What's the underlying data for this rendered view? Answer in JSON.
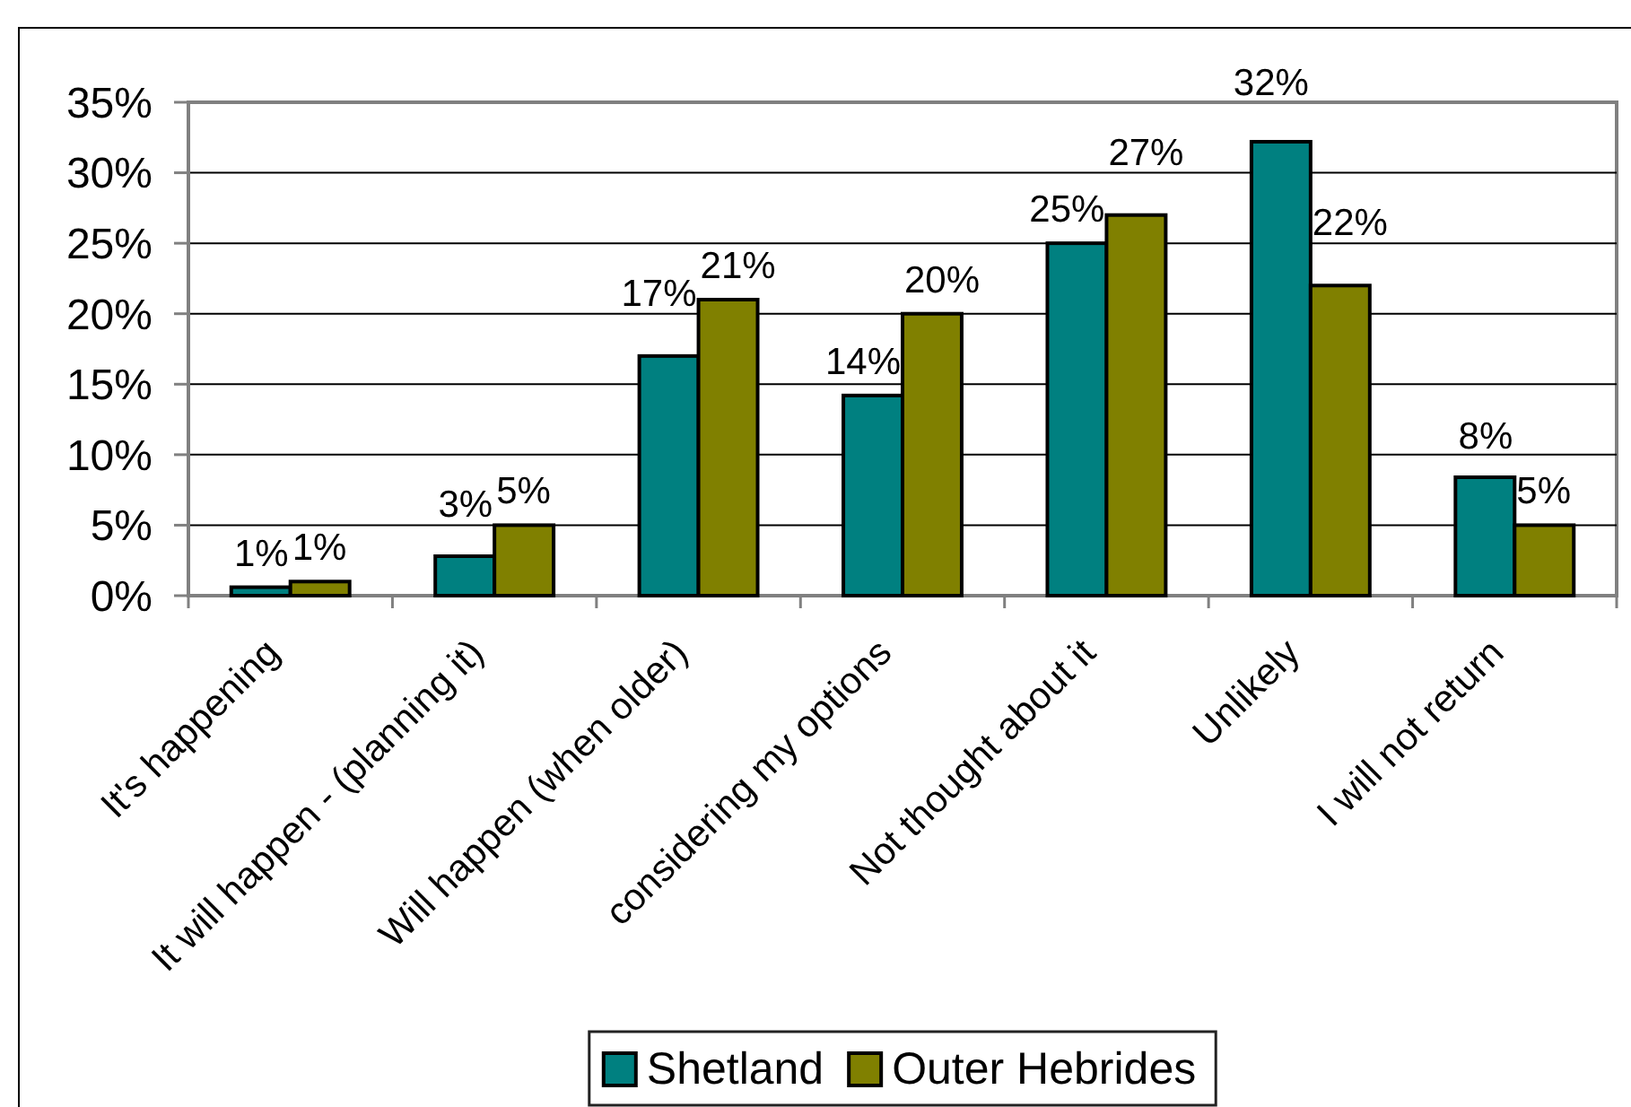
{
  "chart_data": {
    "type": "bar",
    "categories": [
      "It's happening",
      "It will happen - (planning it)",
      "Will happen (when older)",
      "considering my options",
      "Not thought about it",
      "Unlikely",
      "I will not return"
    ],
    "series": [
      {
        "name": "Shetland",
        "color": "#008080",
        "values": [
          0.6,
          2.8,
          17,
          14.2,
          25,
          32.2,
          8.4
        ],
        "value_labels": [
          "1%",
          "3%",
          "17%",
          "14%",
          "25%",
          "32%",
          "8%"
        ]
      },
      {
        "name": "Outer Hebrides",
        "color": "#808000",
        "values": [
          1,
          5,
          21,
          20,
          27,
          22,
          5
        ],
        "value_labels": [
          "1%",
          "5%",
          "21%",
          "20%",
          "27%",
          "22%",
          "5%"
        ]
      }
    ],
    "ylim": [
      0,
      35
    ],
    "yticks": [
      {
        "value": 0,
        "label": "0%"
      },
      {
        "value": 5,
        "label": "5%"
      },
      {
        "value": 10,
        "label": "10%"
      },
      {
        "value": 15,
        "label": "15%"
      },
      {
        "value": 20,
        "label": "20%"
      },
      {
        "value": 25,
        "label": "25%"
      },
      {
        "value": 30,
        "label": "30%"
      },
      {
        "value": 35,
        "label": "35%"
      }
    ],
    "grid": "y",
    "legend": "bottom"
  }
}
